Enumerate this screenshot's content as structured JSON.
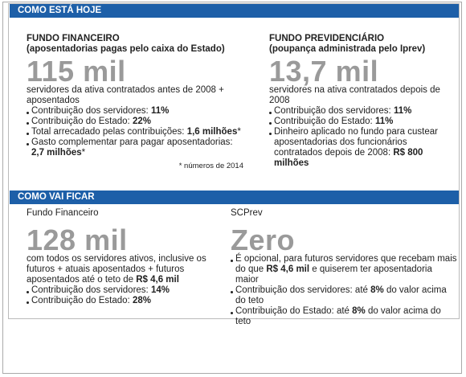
{
  "sections": [
    {
      "title": "COMO ESTÁ HOJE",
      "columns": [
        {
          "heading": "FUNDO FINANCEIRO",
          "subheading": "(aposentadorias pagas pelo caixa do Estado)",
          "big": "115 mil",
          "description": [
            {
              "text": "servidores da ativa contratados antes de 2008 + aposentados"
            }
          ],
          "bullets": [
            [
              {
                "text": "Contribuição dos servidores: "
              },
              {
                "text": "11%",
                "bold": true
              }
            ],
            [
              {
                "text": "Contribuição do Estado: "
              },
              {
                "text": "22%",
                "bold": true
              }
            ],
            [
              {
                "text": "Total arrecadado pelas contribuições: "
              },
              {
                "text": "1,6 milhões",
                "bold": true
              },
              {
                "text": "*"
              }
            ],
            [
              {
                "text": "Gasto complementar para pagar aposentadorias: "
              },
              {
                "text": "2,7 milhões",
                "bold": true
              },
              {
                "text": "*"
              }
            ]
          ],
          "footnote": "* números de 2014"
        },
        {
          "heading": "FUNDO PREVIDENCIÁRIO",
          "subheading": "(poupança administrada pelo Iprev)",
          "big": "13,7 mil",
          "description": [
            {
              "text": "servidores na ativa contratados depois de 2008"
            }
          ],
          "bullets": [
            [
              {
                "text": "Contribuição dos servidores: "
              },
              {
                "text": "11%",
                "bold": true
              }
            ],
            [
              {
                "text": "Contribuição do Estado: "
              },
              {
                "text": "11%",
                "bold": true
              }
            ],
            [
              {
                "text": "Dinheiro aplicado no fundo para custear aposentadorias dos funcionários contratados depois de 2008: "
              },
              {
                "text": "R$ 800 milhões",
                "bold": true
              }
            ]
          ]
        }
      ]
    },
    {
      "title": "COMO VAI FICAR",
      "columns": [
        {
          "heading": "Fundo Financeiro",
          "big": "128 mil",
          "description": [
            {
              "text": "com todos os servidores ativos, inclusive os futuros + atuais aposentados + futuros aposentados até o teto de "
            },
            {
              "text": "R$ 4,6 mil",
              "bold": true
            }
          ],
          "bullets": [
            [
              {
                "text": "Contribuição dos servidores: "
              },
              {
                "text": "14%",
                "bold": true
              }
            ],
            [
              {
                "text": "Contribuição do Estado: "
              },
              {
                "text": "28%",
                "bold": true
              }
            ]
          ]
        },
        {
          "heading": "SCPrev",
          "big": "Zero",
          "bullets": [
            [
              {
                "text": "É opcional, para futuros servidores que recebam mais do que "
              },
              {
                "text": "R$ 4,6 mil",
                "bold": true
              },
              {
                "text": " e quiserem ter aposentadoria maior"
              }
            ],
            [
              {
                "text": "Contribuição dos servidores: até "
              },
              {
                "text": "8%",
                "bold": true
              },
              {
                "text": " do valor acima do teto"
              }
            ],
            [
              {
                "text": "Contribuição do Estado: até "
              },
              {
                "text": "8%",
                "bold": true
              },
              {
                "text": " do valor acima do teto"
              }
            ]
          ]
        }
      ]
    }
  ]
}
